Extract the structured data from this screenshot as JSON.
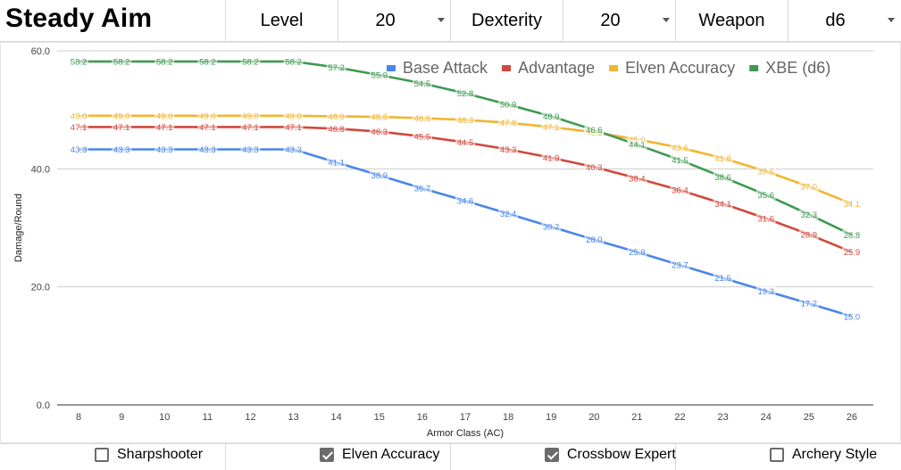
{
  "header": {
    "title": "Steady Aim",
    "fields": [
      {
        "label": "Level",
        "value": "20"
      },
      {
        "label": "Dexterity",
        "value": "20"
      },
      {
        "label": "Weapon",
        "value": "d6"
      }
    ]
  },
  "options": [
    {
      "label": "Sharpshooter",
      "checked": false
    },
    {
      "label": "Elven Accuracy",
      "checked": true
    },
    {
      "label": "Crossbow Expert",
      "checked": true
    },
    {
      "label": "Archery Style",
      "checked": false
    }
  ],
  "chart_data": {
    "type": "line",
    "xlabel": "Armor Class (AC)",
    "ylabel": "Damage/Round",
    "categories": [
      "8",
      "9",
      "10",
      "11",
      "12",
      "13",
      "14",
      "15",
      "16",
      "17",
      "18",
      "19",
      "20",
      "21",
      "22",
      "23",
      "24",
      "25",
      "26"
    ],
    "ylim": [
      0,
      60
    ],
    "yticks": [
      "0.0",
      "20.0",
      "40.0",
      "60.0"
    ],
    "grid": true,
    "legend_position": "top-right",
    "series": [
      {
        "name": "Base Attack",
        "color": "#4a86e8",
        "values": [
          43.3,
          43.3,
          43.3,
          43.3,
          43.3,
          43.3,
          41.1,
          38.9,
          36.7,
          34.6,
          32.4,
          30.2,
          28.0,
          25.9,
          23.7,
          21.5,
          19.3,
          17.2,
          15.0
        ],
        "labels": [
          "43.3",
          "43.3",
          "43.3",
          "43.3",
          "43.3",
          "43.3",
          "41.1",
          "38.9",
          "36.7",
          "34.6",
          "32.4",
          "30.2",
          "28.0",
          "25.9",
          "23.7",
          "21.5",
          "19.3",
          "17.2",
          "15.0"
        ]
      },
      {
        "name": "Advantage",
        "color": "#d0493d",
        "values": [
          47.1,
          47.1,
          47.1,
          47.1,
          47.1,
          47.1,
          46.8,
          46.3,
          45.5,
          44.5,
          43.3,
          41.9,
          40.3,
          38.4,
          36.4,
          34.1,
          31.6,
          28.9,
          25.9
        ],
        "labels": [
          "47.1",
          "47.1",
          "47.1",
          "47.1",
          "47.1",
          "47.1",
          "46.8",
          "46.3",
          "45.5",
          "44.5",
          "43.3",
          "41.9",
          "40.3",
          "38.4",
          "36.4",
          "34.1",
          "31.6",
          "28.9",
          "25.9"
        ]
      },
      {
        "name": "Elven Accuracy",
        "color": "#f2b531",
        "values": [
          49.0,
          49.0,
          49.0,
          49.0,
          49.0,
          49.0,
          48.9,
          48.8,
          48.6,
          48.3,
          47.8,
          47.1,
          46.2,
          45.0,
          43.6,
          41.8,
          39.6,
          37.0,
          34.1
        ],
        "labels": [
          "49.0",
          "49.0",
          "49.0",
          "49.0",
          "49.0",
          "49.0",
          "48.9",
          "48.8",
          "48.6",
          "48.3",
          "47.8",
          "47.1",
          "46.2",
          "45.0",
          "43.6",
          "41.8",
          "39.6",
          "37.0",
          "34.1"
        ]
      },
      {
        "name": "XBE (d6)",
        "color": "#3d9a50",
        "values": [
          58.2,
          58.2,
          58.2,
          58.2,
          58.2,
          58.2,
          57.2,
          55.9,
          54.5,
          52.8,
          50.9,
          48.9,
          46.6,
          44.1,
          41.5,
          38.6,
          35.6,
          32.3,
          28.8
        ],
        "labels": [
          "58.2",
          "58.2",
          "58.2",
          "58.2",
          "58.2",
          "58.2",
          "57.2",
          "55.9",
          "54.5",
          "52.8",
          "50.9",
          "48.9",
          "46.6",
          "44.1",
          "41.5",
          "38.6",
          "35.6",
          "32.3",
          "28.8"
        ]
      }
    ]
  }
}
